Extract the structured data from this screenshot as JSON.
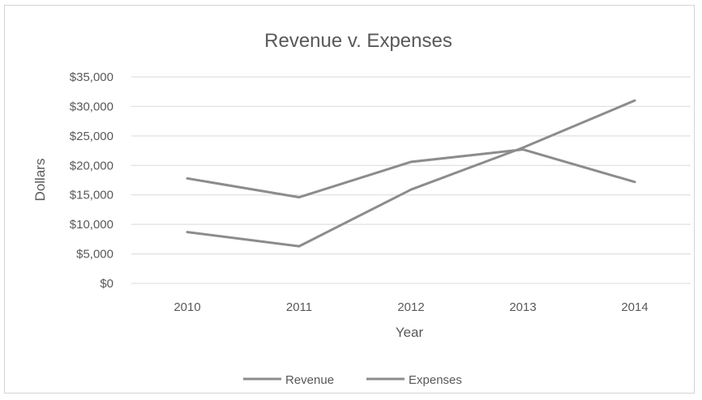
{
  "chart_data": {
    "type": "line",
    "title": "Revenue v. Expenses",
    "xlabel": "Year",
    "ylabel": "Dollars",
    "categories": [
      "2010",
      "2011",
      "2012",
      "2013",
      "2014"
    ],
    "y_ticks": [
      "$0",
      "$5,000",
      "$10,000",
      "$15,000",
      "$20,000",
      "$25,000",
      "$30,000",
      "$35,000"
    ],
    "ylim": [
      0,
      35000
    ],
    "grid": true,
    "legend_position": "bottom",
    "series": [
      {
        "name": "Revenue",
        "values": [
          17800,
          14600,
          20600,
          22700,
          17200
        ],
        "color": "#8c8c8c"
      },
      {
        "name": "Expenses",
        "values": [
          8700,
          6300,
          15900,
          23000,
          31000
        ],
        "color": "#8c8c8c"
      }
    ]
  }
}
